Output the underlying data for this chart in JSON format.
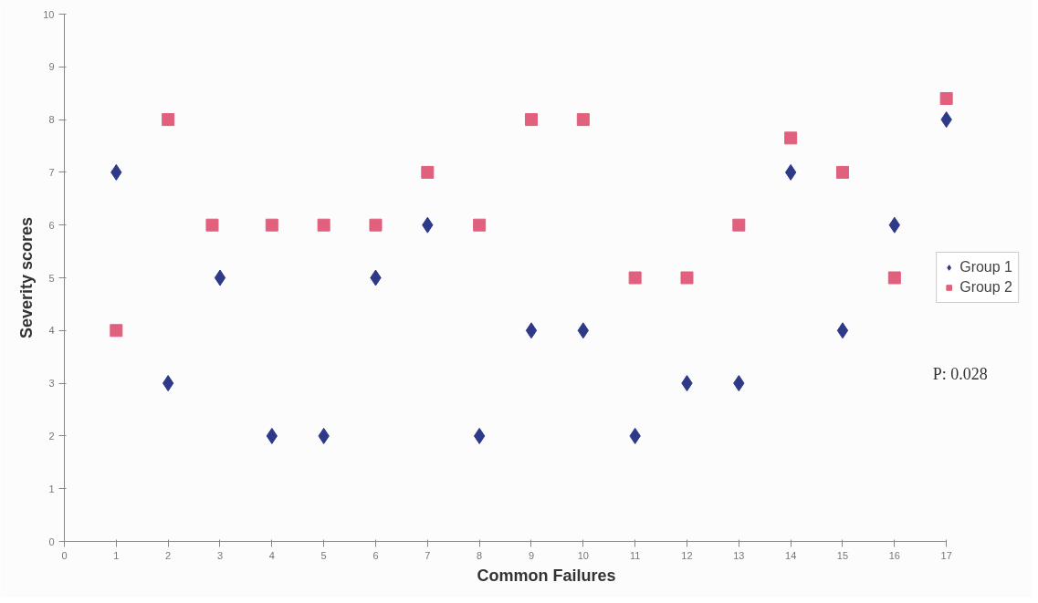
{
  "chart_data": {
    "type": "scatter",
    "xlabel": "Common Failures",
    "ylabel": "Severity scores",
    "xlim": [
      0,
      17
    ],
    "ylim": [
      0,
      10
    ],
    "xticks": [
      0,
      1,
      2,
      3,
      4,
      5,
      6,
      7,
      8,
      9,
      10,
      11,
      12,
      13,
      14,
      15,
      16,
      17
    ],
    "yticks": [
      0,
      1,
      2,
      3,
      4,
      5,
      6,
      7,
      8,
      9,
      10
    ],
    "grid": false,
    "legend": "right",
    "annotations": [
      "P: 0.028"
    ],
    "series": [
      {
        "name": "Group 1",
        "color": "#2e3a87",
        "marker": "diamond",
        "x": [
          1,
          2,
          3,
          4,
          5,
          6,
          7,
          8,
          9,
          10,
          11,
          12,
          13,
          14,
          15,
          16,
          17
        ],
        "values": [
          7,
          3,
          5,
          2,
          2,
          5,
          6,
          2,
          4,
          4,
          2,
          3,
          3,
          7,
          4,
          6,
          8
        ]
      },
      {
        "name": "Group 2",
        "color": "#e0607e",
        "marker": "square",
        "x": [
          1,
          2,
          2.85,
          4,
          5,
          6,
          7,
          8,
          9,
          10,
          11,
          12,
          13,
          14,
          15,
          16,
          17
        ],
        "values": [
          4,
          8,
          6,
          6,
          6,
          6,
          7,
          6,
          8,
          8,
          5,
          5,
          6,
          7.65,
          7,
          5,
          8.4
        ]
      }
    ]
  }
}
